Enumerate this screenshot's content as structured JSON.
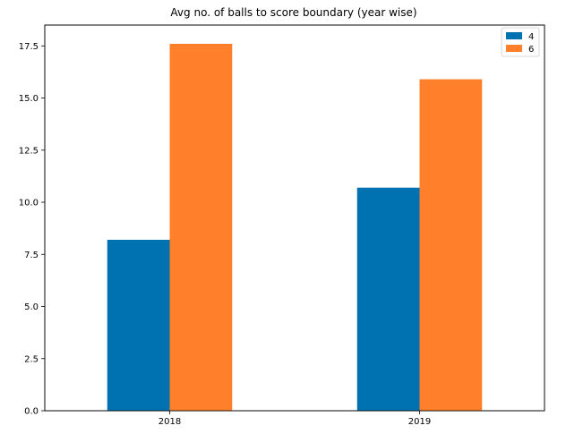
{
  "chart_data": {
    "type": "bar",
    "title": "Avg no. of balls to score boundary (year wise)",
    "xlabel": "",
    "ylabel": "",
    "categories": [
      "2018",
      "2019"
    ],
    "series": [
      {
        "name": "4",
        "color": "#0072B2",
        "values": [
          8.2,
          10.7
        ]
      },
      {
        "name": "6",
        "color": "#FF7F2A",
        "values": [
          17.6,
          15.9
        ]
      }
    ],
    "ylim": [
      0,
      18.5
    ],
    "yticks": [
      "0.0",
      "2.5",
      "5.0",
      "7.5",
      "10.0",
      "12.5",
      "15.0",
      "17.5"
    ],
    "legend": {
      "placement": "top-right"
    },
    "grid": false
  }
}
